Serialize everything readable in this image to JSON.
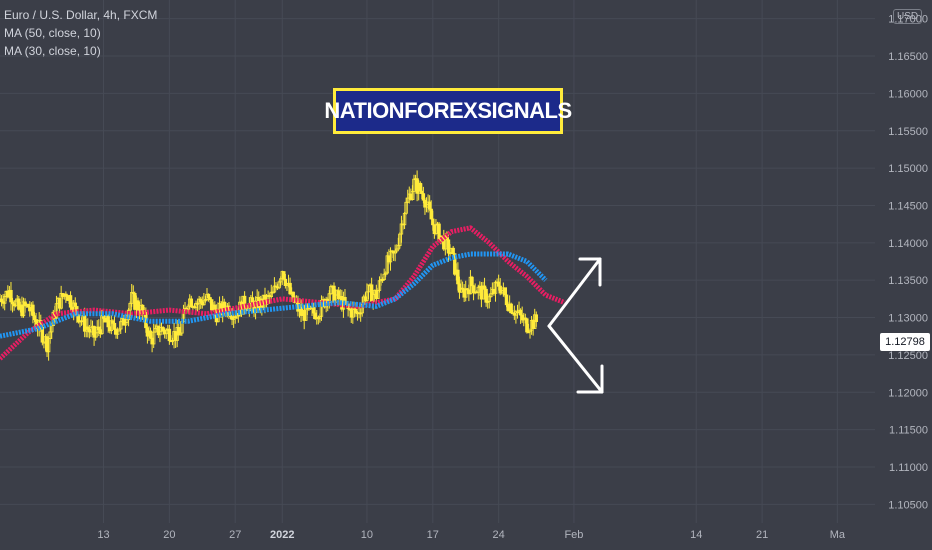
{
  "legend": {
    "symbol": "Euro / U.S. Dollar, 4h, FXCM",
    "ma50": "MA (50, close, 10)",
    "ma30": "MA (30, close, 10)"
  },
  "banner": {
    "text": "NATIONFOREXSIGNALS"
  },
  "price_axis": {
    "currency": "USD",
    "last_price": "1.12798"
  },
  "colors": {
    "background": "#3b3e48",
    "candles": "#ffeb3b",
    "ma_red": "#e91e63",
    "ma_blue": "#2196f3",
    "arrows": "#ffffff",
    "banner_bg": "#1c2a8a",
    "banner_border": "#ffeb3b"
  },
  "chart_data": {
    "type": "line",
    "title": "Euro / U.S. Dollar, 4h, FXCM",
    "ylim": [
      1.1025,
      1.1725
    ],
    "y_ticks": [
      "1.17000",
      "1.16500",
      "1.16000",
      "1.15500",
      "1.15000",
      "1.14500",
      "1.14000",
      "1.13500",
      "1.13000",
      "1.12500",
      "1.12000",
      "1.11500",
      "1.11000",
      "1.10500"
    ],
    "y_tick_values": [
      1.17,
      1.165,
      1.16,
      1.155,
      1.15,
      1.145,
      1.14,
      1.135,
      1.13,
      1.125,
      1.12,
      1.115,
      1.11,
      1.105
    ],
    "x_ticks": [
      {
        "label": "13",
        "x": 13,
        "bold": false
      },
      {
        "label": "20",
        "x": 20,
        "bold": false
      },
      {
        "label": "27",
        "x": 27,
        "bold": false
      },
      {
        "label": "2022",
        "x": 32,
        "bold": true
      },
      {
        "label": "10",
        "x": 41,
        "bold": false
      },
      {
        "label": "17",
        "x": 48,
        "bold": false
      },
      {
        "label": "24",
        "x": 55,
        "bold": false
      },
      {
        "label": "Feb",
        "x": 63,
        "bold": false
      },
      {
        "label": "14",
        "x": 76,
        "bold": false
      },
      {
        "label": "21",
        "x": 83,
        "bold": false
      },
      {
        "label": "Ma",
        "x": 91,
        "bold": false
      }
    ],
    "xlim": [
      2,
      95
    ],
    "price_path": [
      [
        2,
        1.1325
      ],
      [
        3,
        1.1335
      ],
      [
        4,
        1.131
      ],
      [
        5,
        1.1315
      ],
      [
        6,
        1.129
      ],
      [
        7,
        1.1265
      ],
      [
        8,
        1.1315
      ],
      [
        9,
        1.1335
      ],
      [
        10,
        1.131
      ],
      [
        11,
        1.129
      ],
      [
        12,
        1.1275
      ],
      [
        13,
        1.1295
      ],
      [
        14,
        1.1285
      ],
      [
        15,
        1.129
      ],
      [
        16,
        1.1325
      ],
      [
        17,
        1.131
      ],
      [
        18,
        1.127
      ],
      [
        19,
        1.1285
      ],
      [
        20,
        1.128
      ],
      [
        21,
        1.1275
      ],
      [
        22,
        1.1325
      ],
      [
        23,
        1.132
      ],
      [
        24,
        1.1325
      ],
      [
        25,
        1.1305
      ],
      [
        26,
        1.1315
      ],
      [
        27,
        1.1305
      ],
      [
        28,
        1.132
      ],
      [
        29,
        1.1315
      ],
      [
        30,
        1.132
      ],
      [
        31,
        1.133
      ],
      [
        32,
        1.1365
      ],
      [
        33,
        1.1325
      ],
      [
        34,
        1.1305
      ],
      [
        35,
        1.1305
      ],
      [
        36,
        1.131
      ],
      [
        37,
        1.1335
      ],
      [
        38,
        1.1325
      ],
      [
        39,
        1.131
      ],
      [
        40,
        1.1305
      ],
      [
        41,
        1.1335
      ],
      [
        42,
        1.133
      ],
      [
        43,
        1.137
      ],
      [
        44,
        1.1385
      ],
      [
        45,
        1.1445
      ],
      [
        46,
        1.148
      ],
      [
        47,
        1.1465
      ],
      [
        48,
        1.1425
      ],
      [
        49,
        1.1405
      ],
      [
        50,
        1.1385
      ],
      [
        51,
        1.133
      ],
      [
        52,
        1.1345
      ],
      [
        53,
        1.1335
      ],
      [
        54,
        1.1325
      ],
      [
        55,
        1.1345
      ],
      [
        56,
        1.132
      ],
      [
        57,
        1.1305
      ],
      [
        58,
        1.129
      ],
      [
        59,
        1.1295
      ]
    ],
    "series": [
      {
        "name": "MA (30, close, 10)",
        "color": "#e91e63",
        "x": [
          2,
          5,
          8,
          12,
          16,
          20,
          24,
          28,
          32,
          36,
          40,
          44,
          46,
          48,
          50,
          52,
          54,
          56,
          58,
          60,
          62
        ],
        "values": [
          1.1245,
          1.128,
          1.1305,
          1.131,
          1.1305,
          1.131,
          1.1305,
          1.1315,
          1.1325,
          1.132,
          1.1315,
          1.1325,
          1.1355,
          1.1395,
          1.1415,
          1.142,
          1.14,
          1.1375,
          1.1355,
          1.133,
          1.132
        ]
      },
      {
        "name": "MA (50, close, 10)",
        "color": "#2196f3",
        "x": [
          2,
          6,
          10,
          14,
          18,
          22,
          26,
          30,
          34,
          38,
          42,
          44,
          46,
          48,
          50,
          52,
          54,
          56,
          58,
          60
        ],
        "values": [
          1.1275,
          1.1285,
          1.1305,
          1.1305,
          1.1295,
          1.1295,
          1.1305,
          1.131,
          1.1315,
          1.132,
          1.1315,
          1.1325,
          1.1345,
          1.137,
          1.138,
          1.1385,
          1.1385,
          1.1385,
          1.1375,
          1.135
        ]
      }
    ],
    "annotations": [
      "arrow-up",
      "arrow-down"
    ]
  }
}
